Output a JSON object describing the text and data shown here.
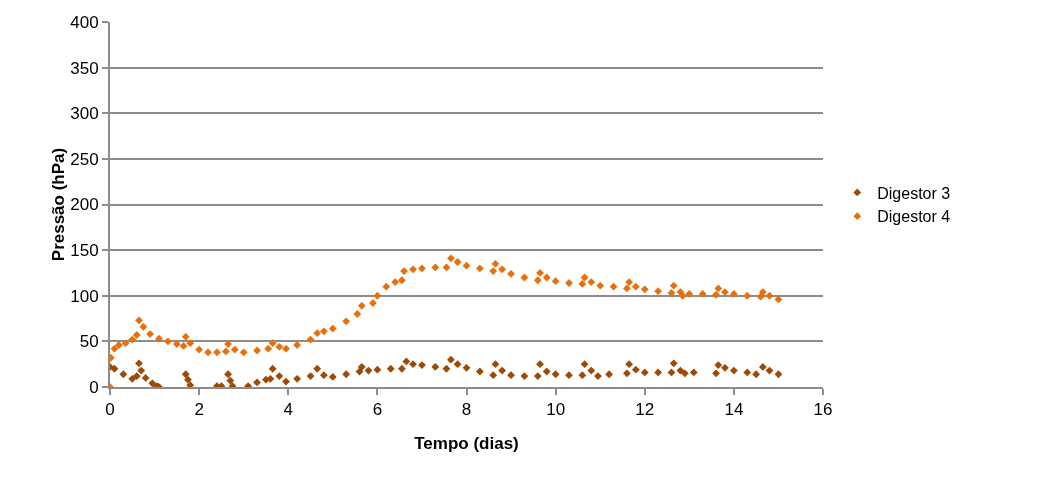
{
  "chart_data": {
    "type": "scatter",
    "xlabel": "Tempo (dias)",
    "ylabel": "Pressão (hPa)",
    "xlim": [
      0,
      16
    ],
    "xticks": [
      0,
      2,
      4,
      6,
      8,
      10,
      12,
      14,
      16
    ],
    "ylim": [
      0,
      400
    ],
    "yticks": [
      0,
      50,
      100,
      150,
      200,
      250,
      300,
      350,
      400
    ],
    "grid": "y",
    "legend": "right",
    "marker": "diamond",
    "series": [
      {
        "name": "Digestor 3",
        "color": "#9c4a06",
        "x": [
          0,
          0.1,
          0.3,
          0.5,
          0.6,
          0.65,
          0.7,
          0.8,
          0.95,
          1.05,
          1.1,
          1.7,
          1.75,
          1.8,
          2.4,
          2.5,
          2.65,
          2.7,
          2.75,
          3.1,
          3.3,
          3.5,
          3.6,
          3.65,
          3.8,
          3.95,
          4.2,
          4.5,
          4.65,
          4.8,
          5.0,
          5.3,
          5.6,
          5.65,
          5.8,
          6.0,
          6.3,
          6.55,
          6.65,
          6.8,
          7.0,
          7.3,
          7.55,
          7.65,
          7.8,
          8.0,
          8.3,
          8.6,
          8.65,
          8.8,
          9.0,
          9.3,
          9.6,
          9.65,
          9.8,
          10.0,
          10.3,
          10.6,
          10.65,
          10.8,
          10.95,
          11.2,
          11.6,
          11.65,
          11.8,
          12.0,
          12.3,
          12.6,
          12.65,
          12.8,
          12.9,
          13.1,
          13.6,
          13.65,
          13.8,
          14.0,
          14.3,
          14.5,
          14.65,
          14.8,
          15.0
        ],
        "values": [
          22,
          20,
          14,
          9,
          12,
          26,
          18,
          10,
          4,
          1,
          0,
          14,
          8,
          2,
          1,
          1,
          14,
          7,
          1,
          1,
          5,
          8,
          9,
          20,
          12,
          6,
          9,
          12,
          20,
          13,
          11,
          14,
          17,
          22,
          18,
          19,
          20,
          20,
          28,
          25,
          24,
          22,
          20,
          30,
          25,
          21,
          17,
          13,
          25,
          18,
          13,
          12,
          12,
          25,
          17,
          14,
          13,
          13,
          25,
          18,
          12,
          14,
          15,
          25,
          19,
          16,
          16,
          16,
          26,
          18,
          15,
          16,
          15,
          24,
          21,
          18,
          16,
          14,
          22,
          18,
          14
        ]
      },
      {
        "name": "Digestor 4",
        "color": "#e8700c",
        "x": [
          0,
          0.02,
          0.1,
          0.2,
          0.35,
          0.5,
          0.6,
          0.65,
          0.75,
          0.9,
          1.1,
          1.3,
          1.5,
          1.65,
          1.7,
          1.8,
          2.0,
          2.2,
          2.4,
          2.6,
          2.65,
          2.8,
          3.0,
          3.3,
          3.55,
          3.65,
          3.8,
          3.95,
          4.2,
          4.5,
          4.65,
          4.8,
          5.0,
          5.3,
          5.55,
          5.65,
          5.9,
          6.0,
          6.2,
          6.4,
          6.55,
          6.6,
          6.8,
          7.0,
          7.3,
          7.55,
          7.65,
          7.8,
          8.0,
          8.3,
          8.6,
          8.65,
          8.8,
          9.0,
          9.3,
          9.6,
          9.65,
          9.8,
          10.0,
          10.3,
          10.6,
          10.65,
          10.8,
          11.0,
          11.3,
          11.6,
          11.65,
          11.8,
          12.0,
          12.3,
          12.6,
          12.65,
          12.8,
          12.85,
          13.0,
          13.3,
          13.6,
          13.65,
          13.8,
          14.0,
          14.3,
          14.6,
          14.65,
          14.8,
          15.0
        ],
        "values": [
          0,
          32,
          42,
          46,
          48,
          52,
          57,
          73,
          66,
          58,
          53,
          50,
          47,
          45,
          55,
          48,
          41,
          38,
          38,
          39,
          47,
          41,
          38,
          40,
          42,
          48,
          44,
          42,
          46,
          52,
          59,
          61,
          64,
          72,
          80,
          89,
          92,
          100,
          110,
          115,
          117,
          127,
          129,
          130,
          131,
          131,
          141,
          137,
          133,
          130,
          127,
          135,
          129,
          124,
          120,
          117,
          125,
          120,
          116,
          114,
          113,
          120,
          115,
          111,
          110,
          108,
          115,
          110,
          107,
          105,
          103,
          111,
          104,
          100,
          102,
          102,
          101,
          108,
          104,
          102,
          100,
          99,
          104,
          100,
          96
        ]
      }
    ]
  }
}
